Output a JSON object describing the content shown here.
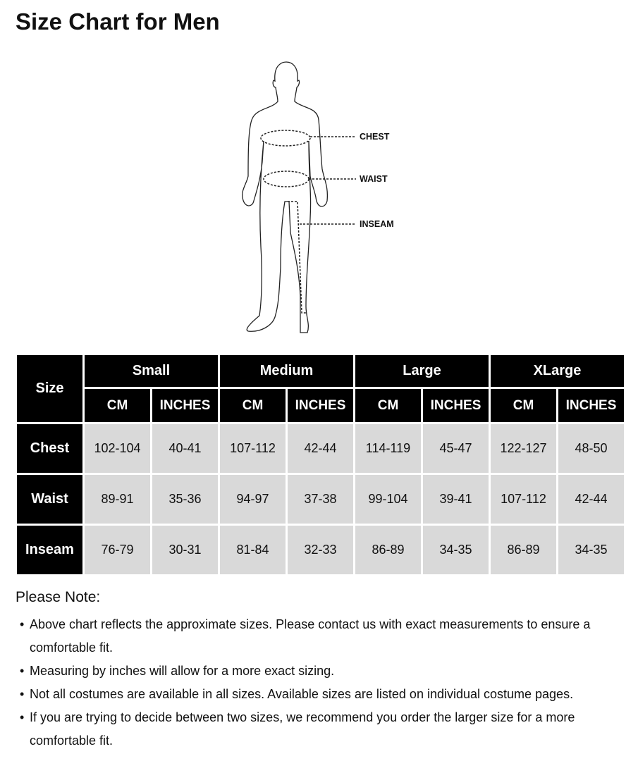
{
  "title": "Size Chart for Men",
  "figure": {
    "labels": [
      "CHEST",
      "WAIST",
      "INSEAM"
    ]
  },
  "table": {
    "corner": "Size",
    "groups": [
      "Small",
      "Medium",
      "Large",
      "XLarge"
    ],
    "units": [
      "CM",
      "INCHES"
    ],
    "rows": [
      {
        "label": "Chest",
        "values": [
          "102-104",
          "40-41",
          "107-112",
          "42-44",
          "114-119",
          "45-47",
          "122-127",
          "48-50"
        ]
      },
      {
        "label": "Waist",
        "values": [
          "89-91",
          "35-36",
          "94-97",
          "37-38",
          "99-104",
          "39-41",
          "107-112",
          "42-44"
        ]
      },
      {
        "label": "Inseam",
        "values": [
          "76-79",
          "30-31",
          "81-84",
          "32-33",
          "86-89",
          "34-35",
          "86-89",
          "34-35"
        ]
      }
    ],
    "colors": {
      "header_bg": "#000000",
      "header_text": "#ffffff",
      "cell_bg": "#d9d9d9"
    }
  },
  "notes": {
    "heading": "Please Note:",
    "items": [
      "Above chart reflects the approximate sizes. Please contact us with exact measurements to ensure a comfortable fit.",
      "Measuring by inches will allow for a more exact sizing.",
      "Not all costumes are available in all sizes. Available sizes are listed on individual costume pages.",
      "If you are trying to decide between two sizes, we recommend you order the larger size for a more comfortable fit."
    ]
  }
}
